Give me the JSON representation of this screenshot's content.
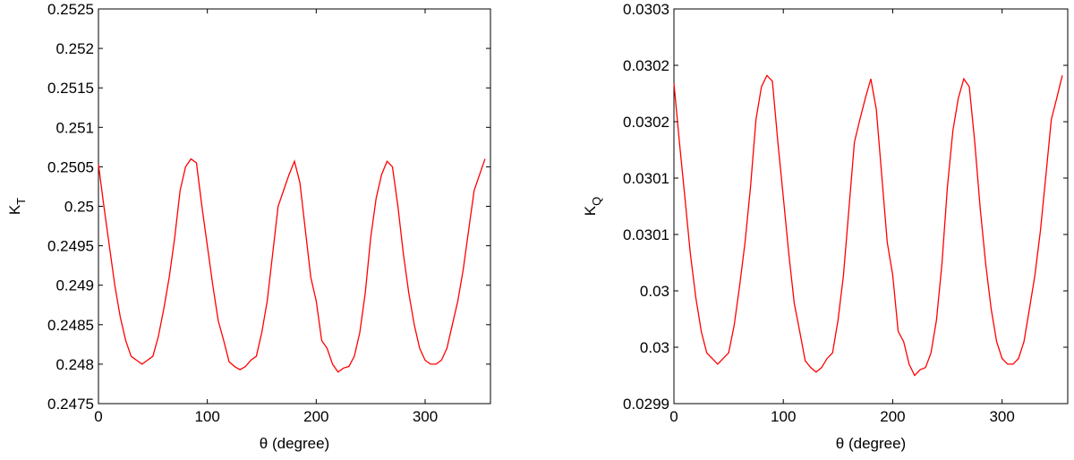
{
  "chart_data": [
    {
      "type": "line",
      "xlabel": "θ (degree)",
      "ylabel": "K",
      "ylabel_subscript": "T",
      "xlim": [
        0,
        360
      ],
      "xticks": [
        0,
        100,
        200,
        300
      ],
      "ylim": [
        0.2475,
        0.2525
      ],
      "yticks": [
        0.2475,
        0.248,
        0.2485,
        0.249,
        0.2495,
        0.25,
        0.2505,
        0.251,
        0.2515,
        0.252,
        0.2525
      ],
      "x": [
        0,
        5,
        10,
        15,
        20,
        25,
        30,
        35,
        40,
        45,
        50,
        55,
        60,
        65,
        70,
        75,
        80,
        85,
        90,
        95,
        100,
        105,
        110,
        115,
        120,
        125,
        130,
        135,
        140,
        145,
        150,
        155,
        160,
        165,
        170,
        175,
        180,
        185,
        190,
        195,
        200,
        205,
        210,
        215,
        220,
        225,
        230,
        235,
        240,
        245,
        250,
        255,
        260,
        265,
        270,
        275,
        280,
        285,
        290,
        295,
        300,
        305,
        310,
        315,
        320,
        325,
        330,
        335,
        340,
        345,
        350,
        355
      ],
      "series": [
        {
          "color": "#ff0000",
          "values": [
            0.25053,
            0.25,
            0.2495,
            0.249,
            0.2486,
            0.2483,
            0.2481,
            0.24805,
            0.248,
            0.24805,
            0.2481,
            0.24835,
            0.2487,
            0.2491,
            0.2496,
            0.2502,
            0.2505,
            0.2506,
            0.25055,
            0.25,
            0.2495,
            0.249,
            0.24855,
            0.2483,
            0.24803,
            0.24797,
            0.24793,
            0.24797,
            0.24805,
            0.2481,
            0.2484,
            0.2488,
            0.2494,
            0.25,
            0.2502,
            0.2504,
            0.25057,
            0.2503,
            0.2497,
            0.2491,
            0.2488,
            0.2483,
            0.2482,
            0.248,
            0.2479,
            0.24795,
            0.24797,
            0.2481,
            0.2484,
            0.2489,
            0.2496,
            0.2501,
            0.2504,
            0.25057,
            0.2505,
            0.25,
            0.2494,
            0.2489,
            0.2485,
            0.2482,
            0.24805,
            0.248,
            0.248,
            0.24805,
            0.2482,
            0.2485,
            0.2488,
            0.2492,
            0.2497,
            0.2502,
            0.2504,
            0.2506
          ]
        }
      ]
    },
    {
      "type": "line",
      "xlabel": "θ (degree)",
      "ylabel": "K",
      "ylabel_subscript": "Q",
      "xlim": [
        0,
        360
      ],
      "xticks": [
        0,
        100,
        200,
        300
      ],
      "ylim": [
        0.02993,
        0.03028
      ],
      "yticks": [
        {
          "value": 0.02993,
          "label": "0.0299"
        },
        {
          "value": 0.02998,
          "label": "0.03"
        },
        {
          "value": 0.03003,
          "label": "0.03"
        },
        {
          "value": 0.03008,
          "label": "0.0301"
        },
        {
          "value": 0.03013,
          "label": "0.0301"
        },
        {
          "value": 0.03018,
          "label": "0.0302"
        },
        {
          "value": 0.03023,
          "label": "0.0302"
        },
        {
          "value": 0.03028,
          "label": "0.0303"
        }
      ],
      "x": [
        0,
        5,
        10,
        15,
        20,
        25,
        30,
        35,
        40,
        45,
        50,
        55,
        60,
        65,
        70,
        75,
        80,
        85,
        90,
        95,
        100,
        105,
        110,
        115,
        120,
        125,
        130,
        135,
        140,
        145,
        150,
        155,
        160,
        165,
        170,
        175,
        180,
        185,
        190,
        195,
        200,
        205,
        210,
        215,
        220,
        225,
        230,
        235,
        240,
        245,
        250,
        255,
        260,
        265,
        270,
        275,
        280,
        285,
        290,
        295,
        300,
        305,
        310,
        315,
        320,
        325,
        330,
        335,
        340,
        345,
        350,
        355
      ],
      "series": [
        {
          "color": "#ff0000",
          "values": [
            0.030214,
            0.030162,
            0.030113,
            0.030063,
            0.030024,
            0.029994,
            0.029975,
            0.02997,
            0.029965,
            0.02997,
            0.029975,
            0.029999,
            0.030034,
            0.030073,
            0.030122,
            0.030182,
            0.030211,
            0.030221,
            0.030216,
            0.030162,
            0.030113,
            0.030063,
            0.030019,
            0.029994,
            0.029968,
            0.029962,
            0.029958,
            0.029962,
            0.02997,
            0.029975,
            0.030004,
            0.030044,
            0.030103,
            0.030162,
            0.030182,
            0.030201,
            0.030218,
            0.030191,
            0.030132,
            0.030073,
            0.030044,
            0.029994,
            0.029985,
            0.029965,
            0.029955,
            0.02996,
            0.029962,
            0.029975,
            0.030004,
            0.030054,
            0.030122,
            0.030172,
            0.030201,
            0.030218,
            0.030211,
            0.030162,
            0.030103,
            0.030054,
            0.030014,
            0.029985,
            0.02997,
            0.029965,
            0.029965,
            0.02997,
            0.029985,
            0.030014,
            0.030044,
            0.030083,
            0.030132,
            0.030182,
            0.030201,
            0.030221
          ]
        }
      ]
    }
  ]
}
